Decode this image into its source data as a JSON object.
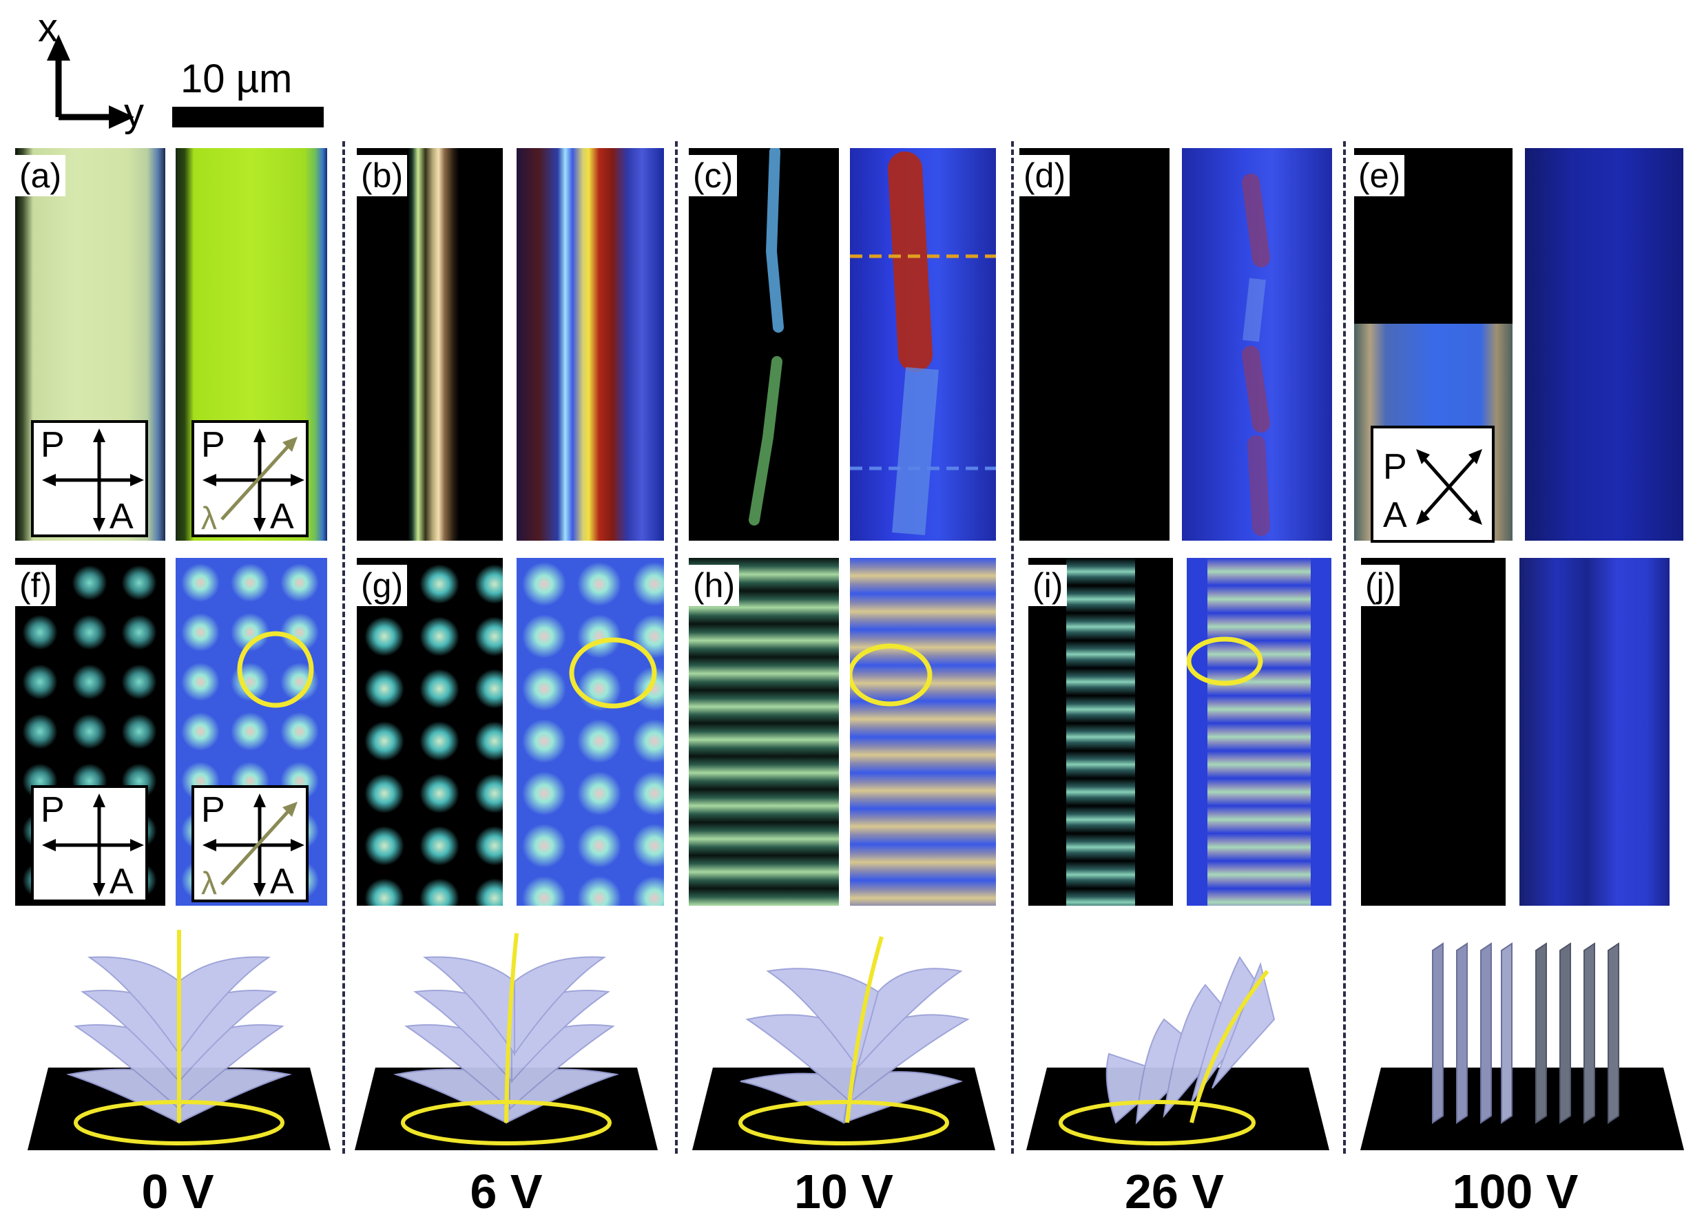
{
  "axes": {
    "x_label": "x",
    "y_label": "y"
  },
  "scale_bar": {
    "label": "10 µm"
  },
  "panels": {
    "a": "(a)",
    "b": "(b)",
    "c": "(c)",
    "d": "(d)",
    "e": "(e)",
    "f": "(f)",
    "g": "(g)",
    "h": "(h)",
    "i": "(i)",
    "j": "(j)"
  },
  "inset_letters": {
    "polarizer": "P",
    "analyzer": "A",
    "waveplate": "λ"
  },
  "voltages": [
    "0 V",
    "6 V",
    "10 V",
    "26 V",
    "100 V"
  ],
  "colors": {
    "pom_black": "#000000",
    "waveplate_blue": "#2a3fd8",
    "defect_ring": "#f0e62a",
    "lamellae": "#b6bce8",
    "substrate": "#000000"
  }
}
